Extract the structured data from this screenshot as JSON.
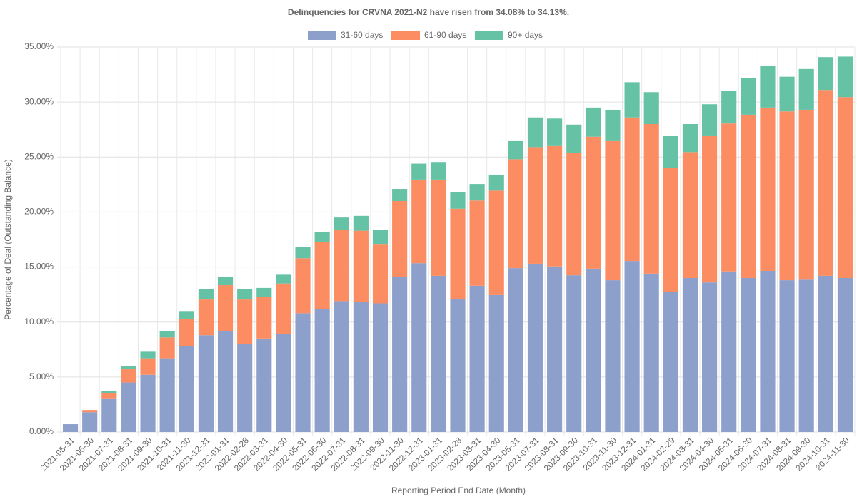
{
  "chart_data": {
    "type": "stacked-bar",
    "title": "Delinquencies for CRVNA 2021-N2 have risen from 34.08% to 34.13%.",
    "x_label": "Reporting Period End Date (Month)",
    "y_label": "Percentage of Deal (Outstanding Balance)",
    "categories": [
      "2021-05-31",
      "2021-06-30",
      "2021-07-31",
      "2021-08-31",
      "2021-09-30",
      "2021-10-31",
      "2021-11-30",
      "2021-12-31",
      "2022-01-31",
      "2022-02-28",
      "2022-03-31",
      "2022-04-30",
      "2022-05-31",
      "2022-06-30",
      "2022-07-31",
      "2022-08-31",
      "2022-09-30",
      "2022-11-30",
      "2022-12-31",
      "2023-01-31",
      "2023-02-28",
      "2023-03-31",
      "2023-04-30",
      "2023-05-31",
      "2023-07-31",
      "2023-08-31",
      "2023-09-30",
      "2023-10-31",
      "2023-11-30",
      "2023-12-31",
      "2024-01-31",
      "2024-02-29",
      "2024-03-31",
      "2024-04-30",
      "2024-05-31",
      "2024-06-30",
      "2024-07-31",
      "2024-08-31",
      "2024-09-30",
      "2024-10-31",
      "2024-11-30"
    ],
    "series": [
      {
        "name": "31-60 days",
        "color": "#8da0cb",
        "values": [
          0.71,
          1.8,
          3.0,
          4.5,
          5.2,
          6.7,
          7.8,
          8.8,
          9.2,
          8.0,
          8.5,
          8.9,
          10.8,
          11.2,
          11.9,
          11.85,
          11.7,
          14.1,
          15.35,
          14.2,
          12.1,
          13.3,
          12.45,
          14.9,
          15.3,
          15.05,
          14.25,
          14.85,
          13.8,
          15.55,
          14.4,
          12.75,
          14.0,
          13.6,
          14.6,
          14.0,
          14.65,
          13.8,
          13.85,
          14.2,
          14.0
        ]
      },
      {
        "name": "61-90 days",
        "color": "#fc8d62",
        "values": [
          0,
          0.2,
          0.5,
          1.2,
          1.5,
          1.9,
          2.5,
          3.25,
          4.15,
          4.05,
          3.75,
          4.6,
          5.0,
          6.05,
          6.5,
          6.45,
          5.4,
          6.9,
          7.6,
          8.75,
          8.2,
          7.75,
          9.5,
          9.9,
          10.6,
          10.95,
          11.1,
          12.0,
          12.65,
          13.05,
          13.6,
          11.25,
          11.45,
          13.3,
          13.45,
          14.85,
          14.85,
          15.35,
          15.45,
          16.9,
          16.45
        ]
      },
      {
        "name": "90+ days",
        "color": "#66c2a5",
        "values": [
          0,
          0,
          0.2,
          0.3,
          0.6,
          0.6,
          0.7,
          0.95,
          0.75,
          0.95,
          0.85,
          0.8,
          1.05,
          0.9,
          1.1,
          1.35,
          1.3,
          1.1,
          1.45,
          1.6,
          1.5,
          1.5,
          1.45,
          1.65,
          2.7,
          2.5,
          2.6,
          2.65,
          2.85,
          3.2,
          2.9,
          2.9,
          2.55,
          2.9,
          2.95,
          3.35,
          3.75,
          3.15,
          3.7,
          2.98,
          3.68
        ]
      }
    ],
    "ylim": [
      0,
      35
    ],
    "yticks": [
      {
        "value": 0,
        "label": "0.00%"
      },
      {
        "value": 5,
        "label": "5.00%"
      },
      {
        "value": 10,
        "label": "10.00%"
      },
      {
        "value": 15,
        "label": "15.00%"
      },
      {
        "value": 20,
        "label": "20.00%"
      },
      {
        "value": 25,
        "label": "25.00%"
      },
      {
        "value": 30,
        "label": "30.00%"
      },
      {
        "value": 35,
        "label": "35.00%"
      }
    ],
    "grid": true,
    "legend": "top"
  }
}
